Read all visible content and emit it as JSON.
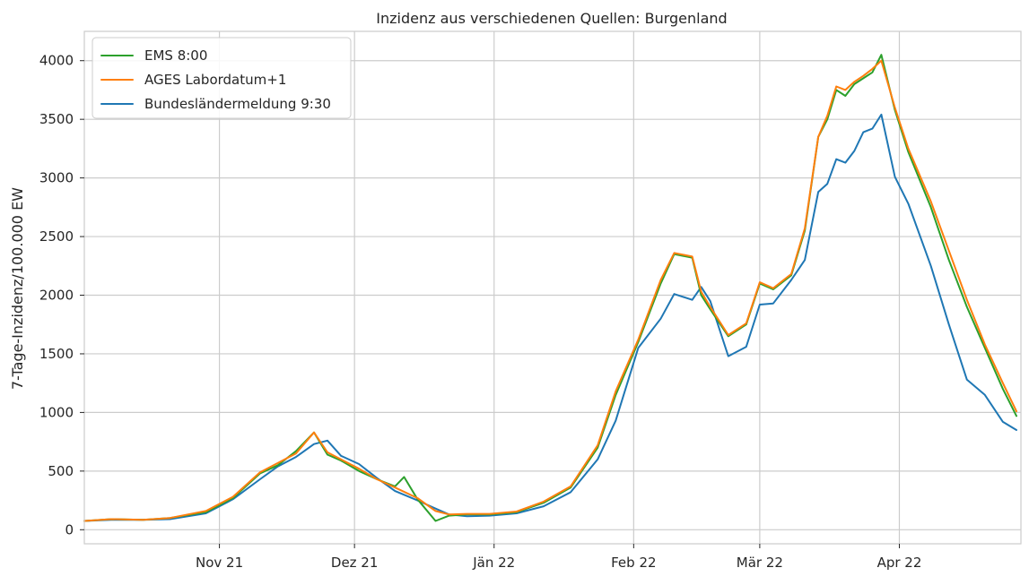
{
  "chart_data": {
    "type": "line",
    "title": "Inzidenz aus verschiedenen Quellen: Burgenland",
    "xlabel": "",
    "ylabel": "7-Tage-Inzidenz/100.000 EW",
    "x_start": "2021-10-02",
    "x_end": "2022-04-28",
    "x_ticks": [
      {
        "label": "Nov 21",
        "date": "2021-11-01"
      },
      {
        "label": "Dez 21",
        "date": "2021-12-01"
      },
      {
        "label": "Jän 22",
        "date": "2022-01-01"
      },
      {
        "label": "Feb 22",
        "date": "2022-02-01"
      },
      {
        "label": "Mär 22",
        "date": "2022-03-01"
      },
      {
        "label": "Apr 22",
        "date": "2022-04-01"
      }
    ],
    "ylim": [
      -120,
      4250
    ],
    "y_ticks": [
      0,
      500,
      1000,
      1500,
      2000,
      2500,
      3000,
      3500,
      4000
    ],
    "grid": true,
    "legend_position": "top-left",
    "series": [
      {
        "name": "EMS 8:00",
        "color": "#2ca02c",
        "x": [
          "2021-10-02",
          "2021-10-08",
          "2021-10-15",
          "2021-10-21",
          "2021-10-29",
          "2021-11-04",
          "2021-11-10",
          "2021-11-14",
          "2021-11-18",
          "2021-11-22",
          "2021-11-25",
          "2021-11-28",
          "2021-12-02",
          "2021-12-06",
          "2021-12-10",
          "2021-12-12",
          "2021-12-15",
          "2021-12-19",
          "2021-12-22",
          "2021-12-26",
          "2021-12-31",
          "2022-01-06",
          "2022-01-12",
          "2022-01-18",
          "2022-01-24",
          "2022-01-28",
          "2022-02-02",
          "2022-02-07",
          "2022-02-10",
          "2022-02-14",
          "2022-02-16",
          "2022-02-18",
          "2022-02-22",
          "2022-02-26",
          "2022-03-01",
          "2022-03-04",
          "2022-03-08",
          "2022-03-11",
          "2022-03-14",
          "2022-03-16",
          "2022-03-18",
          "2022-03-20",
          "2022-03-22",
          "2022-03-24",
          "2022-03-26",
          "2022-03-28",
          "2022-03-31",
          "2022-04-03",
          "2022-04-08",
          "2022-04-12",
          "2022-04-16",
          "2022-04-20",
          "2022-04-24",
          "2022-04-27"
        ],
        "values": [
          75,
          90,
          85,
          100,
          150,
          270,
          480,
          550,
          670,
          830,
          640,
          590,
          500,
          430,
          370,
          450,
          260,
          75,
          120,
          130,
          130,
          150,
          230,
          360,
          700,
          1150,
          1600,
          2100,
          2350,
          2320,
          2000,
          1880,
          1650,
          1750,
          2100,
          2050,
          2170,
          2550,
          3350,
          3500,
          3750,
          3700,
          3800,
          3850,
          3900,
          4050,
          3580,
          3220,
          2750,
          2300,
          1900,
          1550,
          1200,
          970
        ]
      },
      {
        "name": "AGES Labordatum+1",
        "color": "#ff7f0e",
        "x": [
          "2021-10-02",
          "2021-10-08",
          "2021-10-15",
          "2021-10-21",
          "2021-10-29",
          "2021-11-04",
          "2021-11-10",
          "2021-11-14",
          "2021-11-18",
          "2021-11-22",
          "2021-11-25",
          "2021-11-28",
          "2021-12-02",
          "2021-12-06",
          "2021-12-10",
          "2021-12-15",
          "2021-12-19",
          "2021-12-22",
          "2021-12-26",
          "2021-12-31",
          "2022-01-06",
          "2022-01-12",
          "2022-01-18",
          "2022-01-24",
          "2022-01-28",
          "2022-02-02",
          "2022-02-07",
          "2022-02-10",
          "2022-02-14",
          "2022-02-16",
          "2022-02-18",
          "2022-02-22",
          "2022-02-26",
          "2022-03-01",
          "2022-03-04",
          "2022-03-08",
          "2022-03-11",
          "2022-03-14",
          "2022-03-16",
          "2022-03-18",
          "2022-03-20",
          "2022-03-22",
          "2022-03-24",
          "2022-03-26",
          "2022-03-28",
          "2022-03-31",
          "2022-04-03",
          "2022-04-08",
          "2022-04-12",
          "2022-04-16",
          "2022-04-20",
          "2022-04-24",
          "2022-04-27"
        ],
        "values": [
          75,
          90,
          85,
          100,
          160,
          280,
          490,
          570,
          650,
          830,
          660,
          600,
          520,
          430,
          360,
          270,
          160,
          130,
          135,
          135,
          155,
          240,
          370,
          720,
          1180,
          1620,
          2130,
          2360,
          2330,
          2030,
          1900,
          1660,
          1760,
          2110,
          2060,
          2180,
          2570,
          3350,
          3530,
          3780,
          3750,
          3820,
          3870,
          3930,
          4000,
          3600,
          3250,
          2800,
          2380,
          1960,
          1580,
          1250,
          1010
        ]
      },
      {
        "name": "Bundesländermeldung 9:30",
        "color": "#1f77b4",
        "x": [
          "2021-10-02",
          "2021-10-08",
          "2021-10-15",
          "2021-10-21",
          "2021-10-29",
          "2021-11-04",
          "2021-11-10",
          "2021-11-14",
          "2021-11-18",
          "2021-11-22",
          "2021-11-25",
          "2021-11-28",
          "2021-12-02",
          "2021-12-06",
          "2021-12-10",
          "2021-12-15",
          "2021-12-19",
          "2021-12-22",
          "2021-12-26",
          "2021-12-31",
          "2022-01-06",
          "2022-01-12",
          "2022-01-18",
          "2022-01-24",
          "2022-01-28",
          "2022-02-02",
          "2022-02-07",
          "2022-02-10",
          "2022-02-14",
          "2022-02-16",
          "2022-02-18",
          "2022-02-22",
          "2022-02-26",
          "2022-03-01",
          "2022-03-04",
          "2022-03-08",
          "2022-03-11",
          "2022-03-14",
          "2022-03-16",
          "2022-03-18",
          "2022-03-20",
          "2022-03-22",
          "2022-03-24",
          "2022-03-26",
          "2022-03-28",
          "2022-03-31",
          "2022-04-03",
          "2022-04-08",
          "2022-04-12",
          "2022-04-16",
          "2022-04-20",
          "2022-04-24",
          "2022-04-27"
        ],
        "values": [
          75,
          85,
          85,
          90,
          140,
          260,
          430,
          540,
          620,
          730,
          760,
          630,
          560,
          440,
          330,
          250,
          180,
          130,
          115,
          120,
          140,
          200,
          320,
          600,
          930,
          1550,
          1800,
          2010,
          1960,
          2070,
          1950,
          1480,
          1560,
          1920,
          1930,
          2130,
          2300,
          2880,
          2950,
          3160,
          3130,
          3230,
          3390,
          3420,
          3540,
          3010,
          2780,
          2250,
          1750,
          1280,
          1150,
          920,
          850
        ]
      }
    ]
  }
}
